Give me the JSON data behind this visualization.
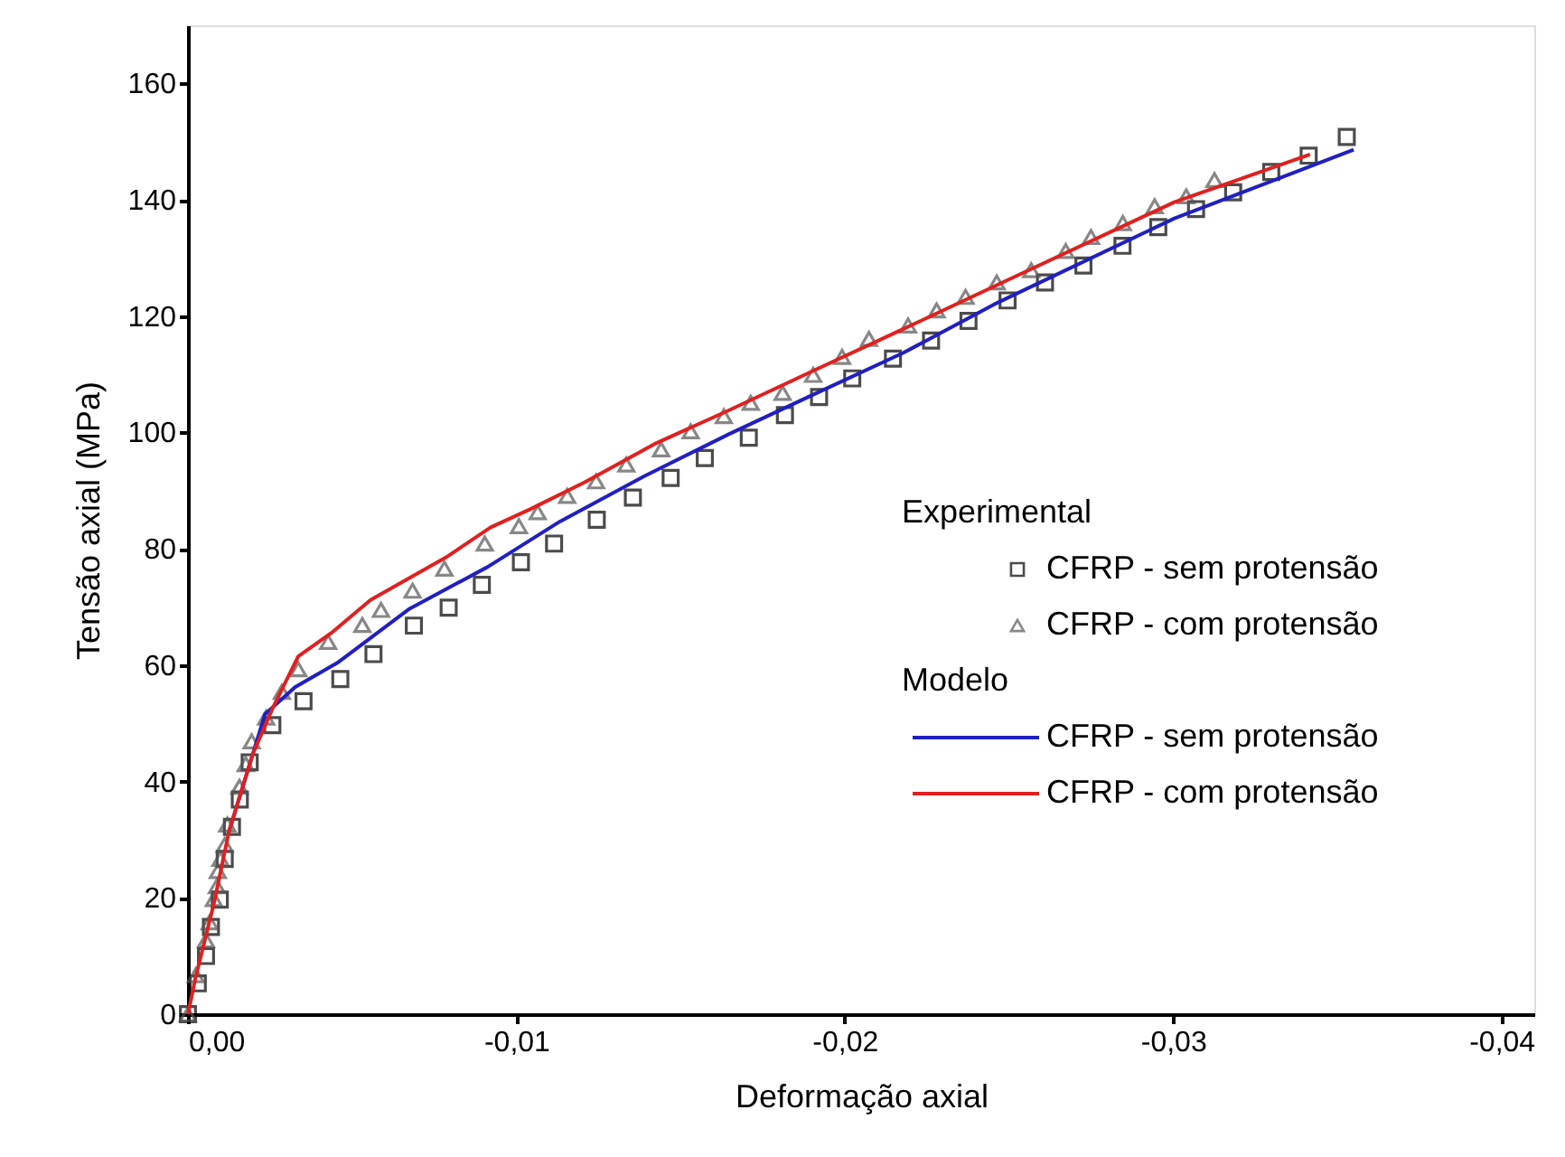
{
  "chart_data": {
    "type": "scatter",
    "xlabel": "Deformação axial",
    "ylabel": "Tensão axial (MPa)",
    "xlim": [
      0,
      -0.041
    ],
    "ylim": [
      0,
      170
    ],
    "xticks": [
      {
        "value": 0,
        "label": "0,00"
      },
      {
        "value": -0.01,
        "label": "-0,01"
      },
      {
        "value": -0.02,
        "label": "-0,02"
      },
      {
        "value": -0.03,
        "label": "-0,03"
      },
      {
        "value": -0.04,
        "label": "-0,04"
      }
    ],
    "yticks": [
      0,
      20,
      40,
      60,
      80,
      100,
      120,
      140,
      160
    ],
    "grid": false,
    "legend": "right",
    "annotations": [
      "Experimental",
      "Modelo"
    ],
    "series": [
      {
        "name": "CFRP - sem protensão",
        "marker": "square",
        "color": "#000000",
        "x": [
          0,
          -0.0003,
          -0.00055,
          -0.0007,
          -0.00097,
          -0.00112,
          -0.00134,
          -0.00158,
          -0.00188,
          -0.00257,
          -0.00352,
          -0.00464,
          -0.00565,
          -0.00688,
          -0.00794,
          -0.00895,
          -0.01014,
          -0.01115,
          -0.01245,
          -0.01355,
          -0.0147,
          -0.01574,
          -0.01708,
          -0.01818,
          -0.01922,
          -0.02023,
          -0.02147,
          -0.02263,
          -0.02377,
          -0.02496,
          -0.0261,
          -0.02727,
          -0.02846,
          -0.02955,
          -0.0307,
          -0.03183,
          -0.03299,
          -0.03413,
          -0.03529
        ],
        "values": [
          0,
          5.3,
          10,
          15,
          19.7,
          26.7,
          32.2,
          36.9,
          43.3,
          49.7,
          53.8,
          57.6,
          61.9,
          66.8,
          69.9,
          73.8,
          77.7,
          80.9,
          85,
          88.8,
          92.2,
          95.6,
          99.1,
          103,
          106.1,
          109.3,
          112.7,
          115.8,
          119.2,
          122.7,
          125.8,
          128.7,
          132.1,
          135.3,
          138.4,
          141.3,
          144.8,
          147.6,
          150.8
        ]
      },
      {
        "name": "CFRP - com protensão",
        "marker": "triangle",
        "color": "#555555",
        "x": [
          0,
          -0.00024,
          -0.00055,
          -0.00066,
          -0.00079,
          -0.00088,
          -0.00091,
          -0.00099,
          -0.00112,
          -0.0012,
          -0.00157,
          -0.00176,
          -0.00194,
          -0.00238,
          -0.00286,
          -0.00336,
          -0.00427,
          -0.00531,
          -0.00588,
          -0.00684,
          -0.00781,
          -0.00904,
          -0.01008,
          -0.01065,
          -0.01155,
          -0.01243,
          -0.01335,
          -0.01441,
          -0.01531,
          -0.01632,
          -0.01714,
          -0.01811,
          -0.01904,
          -0.01992,
          -0.02074,
          -0.02193,
          -0.0228,
          -0.02368,
          -0.02463,
          -0.02568,
          -0.02673,
          -0.0275,
          -0.02847,
          -0.02944,
          -0.0304,
          -0.03126
        ],
        "values": [
          0,
          6.7,
          12.7,
          15.8,
          19.8,
          22,
          24.6,
          26.7,
          29.1,
          32.6,
          39.1,
          43,
          46.9,
          51,
          55.4,
          59.3,
          64,
          66.9,
          69.5,
          72.8,
          76.6,
          80.9,
          83.9,
          86.3,
          89.1,
          91.6,
          94.5,
          97.1,
          100.2,
          102.8,
          105.1,
          106.8,
          109.9,
          113,
          116.1,
          118.4,
          121,
          123.3,
          125.8,
          127.9,
          131.2,
          133.6,
          136,
          138.9,
          140.6,
          143.4
        ]
      },
      {
        "name": "CFRP - sem protensão",
        "type": "line",
        "color": "#2020c0",
        "x": [
          -0.00125,
          -0.00198,
          -0.00235,
          -0.00326,
          -0.00455,
          -0.00675,
          -0.00913,
          -0.01133,
          -0.0139,
          -0.01647,
          -0.01904,
          -0.02179,
          -0.02454,
          -0.03004,
          -0.0355
        ],
        "values": [
          31.4,
          44.8,
          51.6,
          56.2,
          60.4,
          69.7,
          76.9,
          84.7,
          92.5,
          99.7,
          106.5,
          113.7,
          122,
          136.8,
          148.6
        ]
      },
      {
        "name": "CFRP - com protensão",
        "type": "line",
        "color": "#e0201f",
        "x": [
          0,
          -0.00024,
          -0.00079,
          -0.00125,
          -0.00198,
          -0.00262,
          -0.00336,
          -0.00436,
          -0.00556,
          -0.00785,
          -0.00922,
          -0.01042,
          -0.01207,
          -0.01427,
          -0.01647,
          -0.01904,
          -0.02179,
          -0.02454,
          -0.03004,
          -0.03417
        ],
        "values": [
          0,
          6.5,
          19,
          31.4,
          44.8,
          53.1,
          61.5,
          65.5,
          71.2,
          78.5,
          83.7,
          86.8,
          91.4,
          98.2,
          103.8,
          110.6,
          117.8,
          125.1,
          139.6,
          147.8
        ]
      }
    ]
  }
}
